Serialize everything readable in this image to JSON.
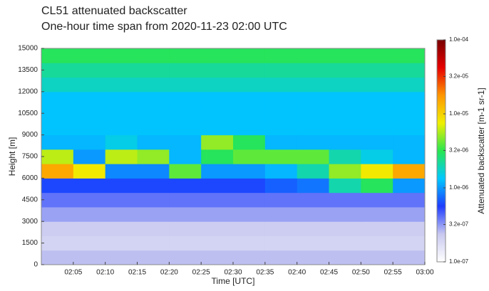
{
  "chart_data": {
    "type": "heatmap",
    "title": "CL51 attenuated backscatter",
    "subtitle": "One-hour time span from 2020-11-23 02:00 UTC",
    "x_label": "Time [UTC]",
    "y_label": "Height [m]",
    "colorbar_label": "Attenuated backscatter [m-1 sr-1]",
    "x_bins": [
      "02:00",
      "02:05",
      "02:10",
      "02:15",
      "02:20",
      "02:25",
      "02:30",
      "02:35",
      "02:40",
      "02:45",
      "02:50",
      "02:55",
      "03:00"
    ],
    "xlim": [
      "02:00",
      "03:00"
    ],
    "xticks": [
      "02:05",
      "02:10",
      "02:15",
      "02:20",
      "02:25",
      "02:30",
      "02:35",
      "02:40",
      "02:45",
      "02:50",
      "02:55",
      "03:00"
    ],
    "y_bins": [
      0,
      1000,
      2000,
      3000,
      4000,
      5000,
      6000,
      7000,
      8000,
      9000,
      10000,
      11000,
      12000,
      13000,
      14000,
      15000
    ],
    "ylim": [
      0,
      15000
    ],
    "yticks": [
      0,
      1500,
      3000,
      4500,
      6000,
      7500,
      9000,
      10500,
      12000,
      13500,
      15000
    ],
    "z": [
      [
        2.5e-07,
        2.5e-07,
        2.5e-07,
        2.5e-07,
        2.5e-07,
        2.5e-07,
        2.5e-07,
        2.5e-07,
        2.5e-07,
        2.5e-07,
        2.5e-07,
        2.5e-07
      ],
      [
        2e-07,
        2e-07,
        2e-07,
        2e-07,
        2e-07,
        2e-07,
        2e-07,
        2e-07,
        2e-07,
        2e-07,
        2e-07,
        2e-07
      ],
      [
        2.2e-07,
        2.2e-07,
        2.2e-07,
        2.2e-07,
        2.2e-07,
        2.2e-07,
        2.2e-07,
        2.2e-07,
        2.2e-07,
        2.2e-07,
        2.2e-07,
        2.2e-07
      ],
      [
        3e-07,
        3e-07,
        3e-07,
        3e-07,
        3e-07,
        3e-07,
        3e-07,
        3e-07,
        3e-07,
        3e-07,
        3e-07,
        3e-07
      ],
      [
        4e-07,
        4e-07,
        4e-07,
        4e-07,
        4e-07,
        4e-07,
        4e-07,
        4e-07,
        4e-07,
        4e-07,
        4e-07,
        4e-07
      ],
      [
        6e-07,
        6e-07,
        6e-07,
        6e-07,
        6e-07,
        6e-07,
        6e-07,
        7e-07,
        8e-07,
        2e-06,
        3e-06,
        1e-06
      ],
      [
        1.5e-05,
        8e-06,
        9e-07,
        9e-07,
        4e-06,
        1e-06,
        1e-06,
        1.2e-06,
        2e-06,
        5e-06,
        8e-06,
        1.5e-05
      ],
      [
        6e-06,
        1e-06,
        6e-06,
        5e-06,
        1.2e-06,
        3e-06,
        4e-06,
        4e-06,
        4e-06,
        2e-06,
        1.5e-06,
        1.2e-06
      ],
      [
        1.2e-06,
        1.2e-06,
        1.5e-06,
        1.2e-06,
        1.2e-06,
        5e-06,
        3e-06,
        1.2e-06,
        1.2e-06,
        1.2e-06,
        1.2e-06,
        1.2e-06
      ],
      [
        1.3e-06,
        1.3e-06,
        1.3e-06,
        1.3e-06,
        1.3e-06,
        1.3e-06,
        1.3e-06,
        1.3e-06,
        1.3e-06,
        1.3e-06,
        1.3e-06,
        1.3e-06
      ],
      [
        1.3e-06,
        1.3e-06,
        1.3e-06,
        1.3e-06,
        1.3e-06,
        1.3e-06,
        1.3e-06,
        1.3e-06,
        1.3e-06,
        1.3e-06,
        1.3e-06,
        1.3e-06
      ],
      [
        1.3e-06,
        1.3e-06,
        1.3e-06,
        1.3e-06,
        1.3e-06,
        1.3e-06,
        1.3e-06,
        1.3e-06,
        1.3e-06,
        1.3e-06,
        1.3e-06,
        1.3e-06
      ],
      [
        1.8e-06,
        1.8e-06,
        1.8e-06,
        1.8e-06,
        1.8e-06,
        1.8e-06,
        1.8e-06,
        1.8e-06,
        1.8e-06,
        1.8e-06,
        1.8e-06,
        1.8e-06
      ],
      [
        2.2e-06,
        2.2e-06,
        2.2e-06,
        2.2e-06,
        2.2e-06,
        2.2e-06,
        2.2e-06,
        2.2e-06,
        2.2e-06,
        2.2e-06,
        2.2e-06,
        2.2e-06
      ],
      [
        3e-06,
        3e-06,
        3e-06,
        3e-06,
        3e-06,
        3e-06,
        3e-06,
        3e-06,
        3e-06,
        3e-06,
        3e-06,
        3e-06
      ]
    ],
    "log_color_scale": true,
    "clim": [
      1e-07,
      0.0001
    ],
    "cticks": [
      {
        "value": 1e-07,
        "label": "1.0e-07"
      },
      {
        "value": 3.2e-07,
        "label": "3.2e-07"
      },
      {
        "value": 1e-06,
        "label": "1.0e-06"
      },
      {
        "value": 3.2e-06,
        "label": "3.2e-06"
      },
      {
        "value": 1e-05,
        "label": "1.0e-05"
      },
      {
        "value": 3.2e-05,
        "label": "3.2e-05"
      },
      {
        "value": 0.0001,
        "label": "1.0e-04"
      }
    ],
    "colormap": [
      "#ffffff",
      "#c8c8f0",
      "#1e3cff",
      "#00c8ff",
      "#28e650",
      "#f0f000",
      "#ff9600",
      "#e60000",
      "#780000"
    ]
  }
}
